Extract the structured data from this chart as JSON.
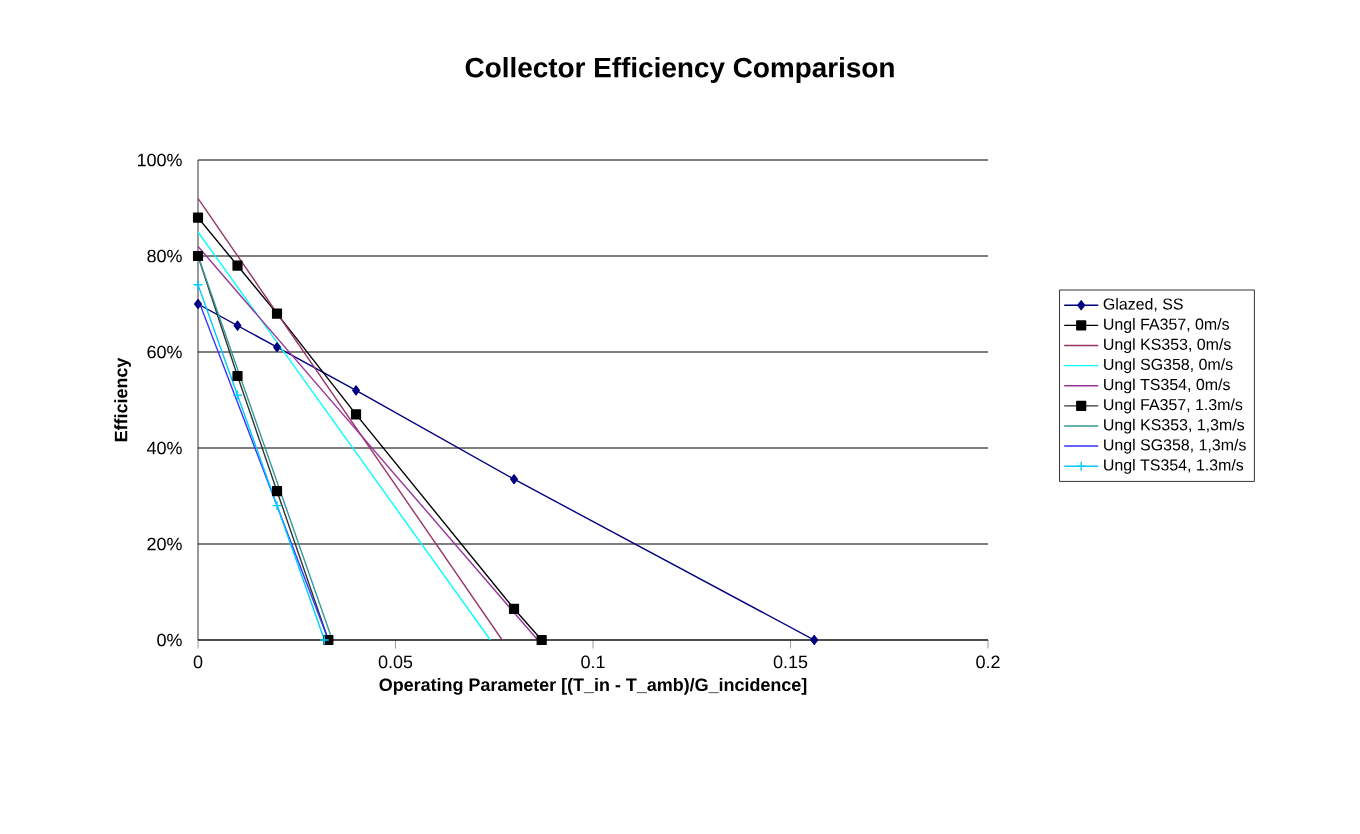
{
  "chart_data": {
    "type": "line",
    "title": "Collector Efficiency Comparison",
    "xlabel": "Operating Parameter [(T_in - T_amb)/G_incidence]",
    "ylabel": "Efficiency",
    "xlim": [
      0,
      0.2
    ],
    "xticks": [
      0,
      0.05,
      0.1,
      0.15,
      0.2
    ],
    "ylim": [
      0,
      100
    ],
    "yticks": [
      {
        "value": 0,
        "label": "0%"
      },
      {
        "value": 20,
        "label": "20%"
      },
      {
        "value": 40,
        "label": "40%"
      },
      {
        "value": 60,
        "label": "60%"
      },
      {
        "value": 80,
        "label": "80%"
      },
      {
        "value": 100,
        "label": "100%"
      }
    ],
    "grid": "y",
    "legend": "right",
    "series": [
      {
        "name": "Glazed, SS",
        "color": "#000080",
        "marker": "diamond",
        "x": [
          0,
          0.01,
          0.02,
          0.04,
          0.08,
          0.156
        ],
        "values": [
          70,
          65.5,
          61,
          52,
          33.5,
          0
        ]
      },
      {
        "name": "Ungl FA357, 0m/s",
        "color": "#000000",
        "marker": "square",
        "x": [
          0,
          0.01,
          0.02,
          0.04,
          0.08,
          0.087
        ],
        "values": [
          88,
          78,
          68,
          47,
          6.5,
          0
        ]
      },
      {
        "name": "Ungl KS353, 0m/s",
        "color": "#993366",
        "marker": "none",
        "x": [
          0,
          0.077
        ],
        "values": [
          92,
          0
        ]
      },
      {
        "name": "Ungl SG358, 0m/s",
        "color": "#00ffff",
        "marker": "none",
        "x": [
          0,
          0.074
        ],
        "values": [
          85,
          0
        ]
      },
      {
        "name": "Ungl TS354, 0m/s",
        "color": "#993399",
        "marker": "none",
        "x": [
          0,
          0.086
        ],
        "values": [
          82,
          0
        ]
      },
      {
        "name": "Ungl FA357, 1.3m/s",
        "color": "#333333",
        "marker": "square",
        "x": [
          0,
          0.01,
          0.02,
          0.033
        ],
        "values": [
          80,
          55,
          31,
          0
        ]
      },
      {
        "name": "Ungl KS353, 1,3m/s",
        "color": "#339999",
        "marker": "none",
        "x": [
          0,
          0.034
        ],
        "values": [
          80,
          0
        ]
      },
      {
        "name": "Ungl SG358, 1,3m/s",
        "color": "#3333ff",
        "marker": "none",
        "x": [
          0,
          0.033
        ],
        "values": [
          71,
          0
        ]
      },
      {
        "name": "Ungl TS354, 1.3m/s",
        "color": "#00ccff",
        "marker": "cross",
        "x": [
          0,
          0.01,
          0.02,
          0.032
        ],
        "values": [
          74,
          51,
          28,
          0
        ]
      }
    ]
  }
}
